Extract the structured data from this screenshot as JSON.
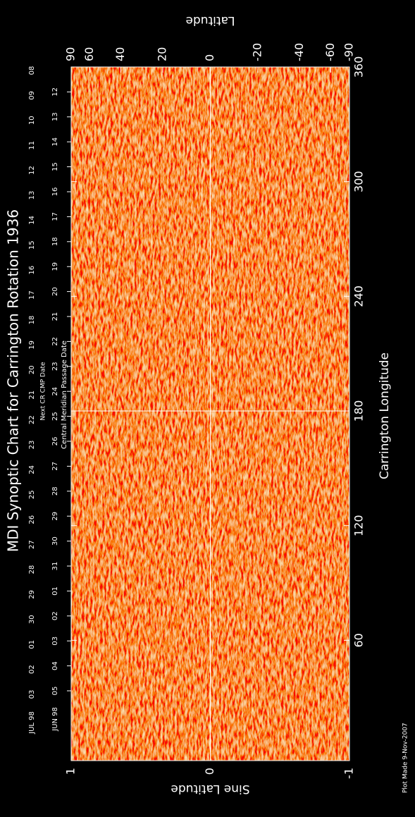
{
  "chart_data": {
    "type": "synoptic",
    "title": "MDI Synoptic Chart for Carrington Rotation 1936",
    "x_label": "Carrington Longitude",
    "y_label": "Sine Latitude",
    "y2_label": "Latitude",
    "xlim": [
      0,
      360
    ],
    "xticks": [
      60,
      120,
      180,
      240,
      300,
      360
    ],
    "ylim": [
      -1,
      1
    ],
    "yticks": [
      -1,
      0,
      1
    ],
    "y2lim": [
      -90,
      90
    ],
    "y2ticks": [
      90,
      60,
      40,
      20,
      0,
      -20,
      -40,
      -60,
      -90
    ],
    "y2_scale": "sine",
    "guide_lines": {
      "x": 180,
      "y": 0
    },
    "background_color": "#d9521f",
    "date_rows": [
      {
        "caption": "Next CR CMP Date",
        "month_label": "JUL 98",
        "color": "#ff5a1e",
        "labels": [
          "03",
          "02",
          "01",
          "30",
          "29",
          "28",
          "27",
          "26",
          "25",
          "24",
          "23",
          "22",
          "21",
          "20",
          "19",
          "18",
          "17",
          "16",
          "15",
          "14",
          "13",
          "12",
          "11",
          "10",
          "09",
          "08"
        ]
      },
      {
        "caption": "Central Meridian Passage Date",
        "month_label": "JUN 98",
        "color": "#ffffff",
        "labels": [
          "05",
          "04",
          "03",
          "02",
          "01",
          "31",
          "30",
          "29",
          "28",
          "27",
          "26",
          "25",
          "24",
          "23",
          "22",
          "21",
          "20",
          "19",
          "18",
          "17",
          "16",
          "15",
          "14",
          "13",
          "12"
        ]
      }
    ],
    "footnote": "Plot Made  9-Nov-2007"
  }
}
